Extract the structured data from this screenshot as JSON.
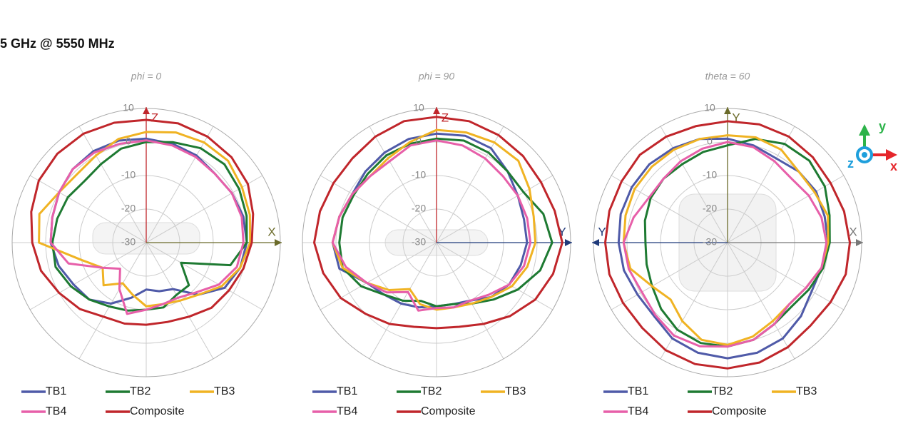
{
  "title": "5 GHz @ 5550 MHz",
  "orientation_icon": {
    "y": "y",
    "z": "z",
    "x": "x"
  },
  "chart_data": [
    {
      "type": "polar",
      "subtitle": "phi = 0",
      "rlim": [
        -30,
        10
      ],
      "rticks": [
        -30,
        -20,
        -10,
        0,
        10
      ],
      "theta": [
        0,
        15,
        30,
        45,
        60,
        75,
        90,
        105,
        120,
        135,
        150,
        165,
        180,
        195,
        210,
        225,
        240,
        255,
        270,
        285,
        300,
        315,
        330,
        345
      ],
      "axes": [
        {
          "dir": "up",
          "label": "Z",
          "color": "#c0262b"
        },
        {
          "dir": "right",
          "label": "X",
          "color": "#6b6b2a"
        }
      ],
      "series": [
        {
          "name": "TB1",
          "color": "#4f5aa8",
          "values": [
            1,
            0.5,
            0,
            -1,
            -0.5,
            0,
            0,
            -1,
            -3,
            -8,
            -14,
            -15,
            -16,
            -13,
            -9,
            -6,
            -5,
            -3,
            -1.5,
            -1,
            0,
            1,
            1.5,
            1.5
          ]
        },
        {
          "name": "TB2",
          "color": "#1e7a32",
          "values": [
            0,
            1,
            2.5,
            3,
            2,
            1,
            0,
            -4,
            -18,
            -12,
            -12,
            -10,
            -10,
            -9,
            -8,
            -6,
            -4,
            -2,
            -2,
            -2.5,
            -3,
            -4,
            -3,
            -1
          ]
        },
        {
          "name": "TB3",
          "color": "#f0b323",
          "values": [
            3,
            4,
            4.5,
            4.5,
            3,
            2,
            1,
            -1,
            -4,
            -8,
            -10,
            -11,
            -11,
            -14,
            -16,
            -12,
            -15,
            -10,
            2,
            3,
            0,
            -1,
            0,
            2
          ]
        },
        {
          "name": "TB4",
          "color": "#e75fa9",
          "values": [
            0.5,
            0,
            -0.5,
            -1,
            -0.5,
            -0.5,
            -1,
            -2,
            -5,
            -9,
            -11,
            -11,
            -10,
            -8,
            -14,
            -19,
            -15,
            -6,
            -1.5,
            -1,
            0,
            1,
            1,
            0.5
          ]
        },
        {
          "name": "Composite",
          "color": "#c0262b",
          "values": [
            6.6,
            6.8,
            6.5,
            6,
            5,
            3,
            1.5,
            0,
            -1.5,
            -2.5,
            -4.5,
            -5.5,
            -5.5,
            -5,
            -4.5,
            -2,
            0,
            2.5,
            4,
            5.5,
            7,
            7.5,
            7.5,
            7
          ]
        }
      ]
    },
    {
      "type": "polar",
      "subtitle": "phi = 90",
      "rlim": [
        -30,
        10
      ],
      "rticks": [
        -30,
        -20,
        -10,
        0,
        10
      ],
      "theta": [
        0,
        15,
        30,
        45,
        60,
        75,
        90,
        105,
        120,
        135,
        150,
        165,
        180,
        195,
        210,
        225,
        240,
        255,
        270,
        285,
        300,
        315,
        330,
        345
      ],
      "axes": [
        {
          "dir": "up",
          "label": "Z",
          "color": "#c0262b"
        },
        {
          "dir": "right",
          "label": "Y",
          "color": "#1f3a7a"
        }
      ],
      "series": [
        {
          "name": "TB1",
          "color": "#4f5aa8",
          "values": [
            2.5,
            3,
            2.5,
            0,
            -2,
            -3,
            -3,
            -4,
            -5,
            -7,
            -10,
            -11,
            -11,
            -10,
            -9,
            -8,
            -6,
            0,
            1,
            0,
            -1,
            0,
            1,
            2
          ]
        },
        {
          "name": "TB2",
          "color": "#1e7a32",
          "values": [
            1,
            1.5,
            1,
            0,
            0,
            3,
            4.5,
            2,
            -2,
            -6,
            -9,
            -11,
            -11,
            -12,
            -10,
            -8,
            -4,
            -1,
            -1,
            -1,
            -1.5,
            -1,
            0,
            0.5
          ]
        },
        {
          "name": "TB3",
          "color": "#f0b323",
          "values": [
            3.6,
            4,
            4.5,
            4.5,
            2,
            0,
            -0.5,
            -2,
            -4,
            -7,
            -9,
            -10,
            -10,
            -11,
            -14,
            -10,
            -6,
            -1,
            1,
            0,
            -1,
            -2,
            -1,
            1
          ]
        },
        {
          "name": "TB4",
          "color": "#e75fa9",
          "values": [
            0.5,
            0,
            -1,
            -2,
            -2,
            -2,
            -2,
            -3,
            -5,
            -8,
            -10,
            -10,
            -10.5,
            -9,
            -13,
            -9,
            -6,
            -2,
            1,
            0,
            -1,
            -2,
            -2,
            0
          ]
        },
        {
          "name": "Composite",
          "color": "#c0262b",
          "values": [
            7.5,
            7.5,
            7,
            6.5,
            6,
            6.5,
            7.5,
            6,
            4,
            1,
            -2,
            -4,
            -4.5,
            -4,
            -2,
            0,
            3,
            5,
            6.5,
            6,
            5.5,
            5.5,
            6.5,
            7.5
          ]
        }
      ]
    },
    {
      "type": "polar",
      "subtitle": "theta = 60",
      "rlim": [
        -30,
        10
      ],
      "rticks": [
        -30,
        -20,
        -10,
        0,
        10
      ],
      "theta": [
        0,
        15,
        30,
        45,
        60,
        75,
        90,
        105,
        120,
        135,
        150,
        165,
        180,
        195,
        210,
        225,
        240,
        255,
        270,
        285,
        300,
        315,
        330,
        345
      ],
      "axes": [
        {
          "dir": "up",
          "label": "Y",
          "color": "#6b6b2a"
        },
        {
          "dir": "right",
          "label": "X",
          "color": "#777777"
        },
        {
          "dir": "left",
          "label": "Y",
          "color": "#1f3a7a"
        }
      ],
      "series": [
        {
          "name": "TB1",
          "color": "#4f5aa8",
          "values": [
            1,
            0,
            -1,
            0,
            0.5,
            0,
            0,
            -1,
            -1,
            1,
            3,
            4,
            4.5,
            4,
            3,
            1,
            1,
            2,
            2.5,
            3,
            3,
            3,
            2.5,
            2
          ]
        },
        {
          "name": "TB2",
          "color": "#1e7a32",
          "values": [
            -1,
            2,
            4,
            4.5,
            3.5,
            1.5,
            0.5,
            -0.5,
            -2,
            -3,
            -2,
            0,
            1,
            1,
            0,
            -2,
            -4,
            -5,
            -5.5,
            -4.5,
            -3.5,
            -3,
            -3,
            -2
          ]
        },
        {
          "name": "TB3",
          "color": "#f0b323",
          "values": [
            2,
            2.5,
            2,
            0,
            0,
            1,
            0,
            -1,
            -3,
            -4,
            -3,
            -1,
            0.5,
            0,
            -3,
            -6,
            -4,
            0,
            1,
            1.5,
            2,
            2,
            2,
            2
          ]
        },
        {
          "name": "TB4",
          "color": "#e75fa9",
          "values": [
            0,
            -0.5,
            -2,
            -3,
            -2,
            -1,
            -0.5,
            -1,
            -3,
            -4,
            -2,
            0,
            1,
            2,
            2,
            0.5,
            -0.5,
            0.5,
            1,
            -1,
            -3,
            -3,
            -2,
            -1
          ]
        },
        {
          "name": "Composite",
          "color": "#c0262b",
          "values": [
            6.2,
            6.5,
            6.5,
            6,
            5.5,
            6,
            6.5,
            6.5,
            5.5,
            5,
            6,
            7,
            7.5,
            7.5,
            7,
            6,
            6,
            6.5,
            6.5,
            6.5,
            6.5,
            7,
            6.5,
            6
          ]
        }
      ]
    }
  ]
}
